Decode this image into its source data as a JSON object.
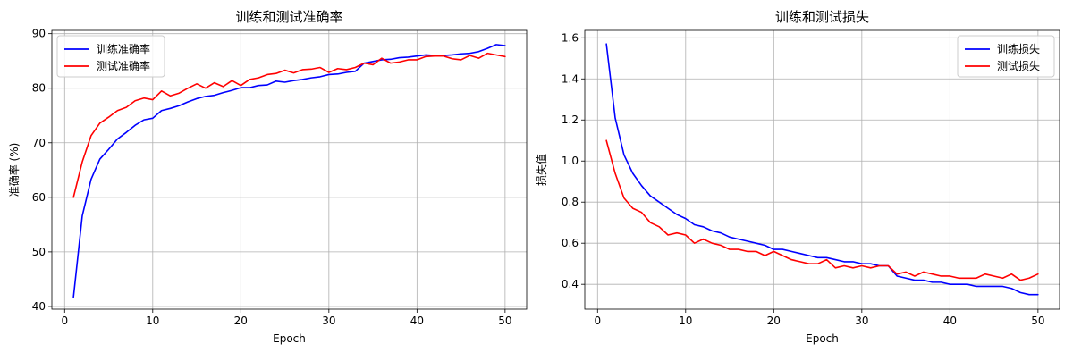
{
  "chart_data": [
    {
      "type": "line",
      "title": "训练和测试准确率",
      "xlabel": "Epoch",
      "ylabel": "准确率 (%)",
      "xlim": [
        -1.45,
        52.45
      ],
      "ylim": [
        39.5,
        90.6
      ],
      "xticks": [
        0,
        10,
        20,
        30,
        40,
        50
      ],
      "yticks": [
        40,
        50,
        60,
        70,
        80,
        90
      ],
      "grid": true,
      "legend_position": "top-left",
      "x": [
        1,
        2,
        3,
        4,
        5,
        6,
        7,
        8,
        9,
        10,
        11,
        12,
        13,
        14,
        15,
        16,
        17,
        18,
        19,
        20,
        21,
        22,
        23,
        24,
        25,
        26,
        27,
        28,
        29,
        30,
        31,
        32,
        33,
        34,
        35,
        36,
        37,
        38,
        39,
        40,
        41,
        42,
        43,
        44,
        45,
        46,
        47,
        48,
        49,
        50
      ],
      "series": [
        {
          "name": "训练准确率",
          "color": "#0000ff",
          "values": [
            41.7,
            56.6,
            63.3,
            67.0,
            68.8,
            70.7,
            71.9,
            73.2,
            74.2,
            74.5,
            75.9,
            76.3,
            76.8,
            77.5,
            78.1,
            78.5,
            78.7,
            79.2,
            79.6,
            80.1,
            80.1,
            80.5,
            80.6,
            81.3,
            81.1,
            81.4,
            81.6,
            81.9,
            82.1,
            82.5,
            82.6,
            82.9,
            83.1,
            84.6,
            84.9,
            85.2,
            85.3,
            85.6,
            85.7,
            85.9,
            86.1,
            86.0,
            86.0,
            86.1,
            86.3,
            86.4,
            86.7,
            87.3,
            88.0,
            87.8
          ]
        },
        {
          "name": "测试准确率",
          "color": "#ff0000",
          "values": [
            60.0,
            66.5,
            71.3,
            73.6,
            74.7,
            75.9,
            76.5,
            77.7,
            78.2,
            77.9,
            79.5,
            78.6,
            79.1,
            80.0,
            80.8,
            80.0,
            81.0,
            80.3,
            81.4,
            80.5,
            81.6,
            81.9,
            82.5,
            82.7,
            83.3,
            82.8,
            83.4,
            83.5,
            83.8,
            82.9,
            83.6,
            83.4,
            83.8,
            84.6,
            84.3,
            85.5,
            84.6,
            84.8,
            85.2,
            85.2,
            85.8,
            85.9,
            85.9,
            85.4,
            85.2,
            86.0,
            85.5,
            86.4,
            86.1,
            85.8
          ]
        }
      ]
    },
    {
      "type": "line",
      "title": "训练和测试损失",
      "xlabel": "Epoch",
      "ylabel": "损失值",
      "xlim": [
        -1.45,
        52.45
      ],
      "ylim": [
        0.279,
        1.636
      ],
      "xticks": [
        0,
        10,
        20,
        30,
        40,
        50
      ],
      "yticks": [
        0.4,
        0.6,
        0.8,
        1.0,
        1.2,
        1.4,
        1.6
      ],
      "ytick_labels": [
        "0.4",
        "0.6",
        "0.8",
        "1.0",
        "1.2",
        "1.4",
        "1.6"
      ],
      "grid": true,
      "legend_position": "top-right",
      "x": [
        1,
        2,
        3,
        4,
        5,
        6,
        7,
        8,
        9,
        10,
        11,
        12,
        13,
        14,
        15,
        16,
        17,
        18,
        19,
        20,
        21,
        22,
        23,
        24,
        25,
        26,
        27,
        28,
        29,
        30,
        31,
        32,
        33,
        34,
        35,
        36,
        37,
        38,
        39,
        40,
        41,
        42,
        43,
        44,
        45,
        46,
        47,
        48,
        49,
        50
      ],
      "series": [
        {
          "name": "训练损失",
          "color": "#0000ff",
          "values": [
            1.57,
            1.21,
            1.03,
            0.94,
            0.88,
            0.83,
            0.8,
            0.77,
            0.74,
            0.72,
            0.69,
            0.68,
            0.66,
            0.65,
            0.63,
            0.62,
            0.61,
            0.6,
            0.59,
            0.57,
            0.57,
            0.56,
            0.55,
            0.54,
            0.53,
            0.53,
            0.52,
            0.51,
            0.51,
            0.5,
            0.5,
            0.49,
            0.49,
            0.44,
            0.43,
            0.42,
            0.42,
            0.41,
            0.41,
            0.4,
            0.4,
            0.4,
            0.39,
            0.39,
            0.39,
            0.39,
            0.38,
            0.36,
            0.35,
            0.35
          ]
        },
        {
          "name": "测试损失",
          "color": "#ff0000",
          "values": [
            1.1,
            0.94,
            0.82,
            0.77,
            0.75,
            0.7,
            0.68,
            0.64,
            0.65,
            0.64,
            0.6,
            0.62,
            0.6,
            0.59,
            0.57,
            0.57,
            0.56,
            0.56,
            0.54,
            0.56,
            0.54,
            0.52,
            0.51,
            0.5,
            0.5,
            0.52,
            0.48,
            0.49,
            0.48,
            0.49,
            0.48,
            0.49,
            0.49,
            0.45,
            0.46,
            0.44,
            0.46,
            0.45,
            0.44,
            0.44,
            0.43,
            0.43,
            0.43,
            0.45,
            0.44,
            0.43,
            0.45,
            0.42,
            0.43,
            0.45
          ]
        }
      ]
    }
  ]
}
